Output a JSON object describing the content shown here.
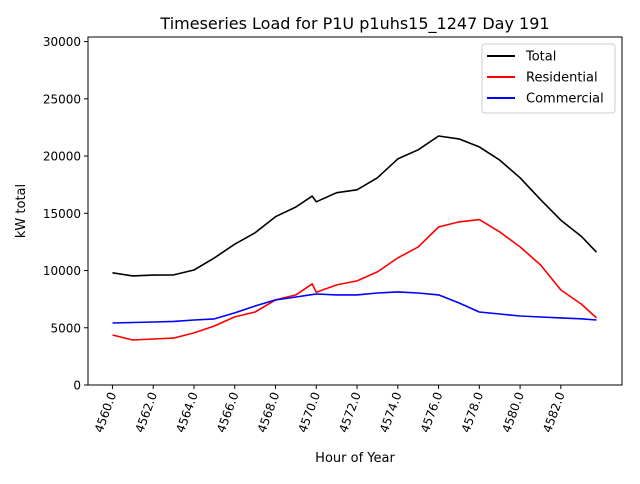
{
  "chart_data": {
    "type": "line",
    "title": "Timeseries Load for P1U p1uhs15_1247  Day 191",
    "xlabel": "Hour of Year",
    "ylabel": "kW total",
    "xlim": [
      4558.8,
      4585.0
    ],
    "ylim": [
      0,
      30400
    ],
    "xticks": [
      4560,
      4562,
      4564,
      4566,
      4568,
      4570,
      4572,
      4574,
      4576,
      4578,
      4580,
      4582
    ],
    "xtick_labels": [
      "4560.0",
      "4562.0",
      "4564.0",
      "4566.0",
      "4568.0",
      "4570.0",
      "4572.0",
      "4574.0",
      "4576.0",
      "4578.0",
      "4580.0",
      "4582.0"
    ],
    "yticks": [
      0,
      5000,
      10000,
      15000,
      20000,
      25000,
      30000
    ],
    "ytick_labels": [
      "0",
      "5000",
      "10000",
      "15000",
      "20000",
      "25000",
      "30000"
    ],
    "grid": false,
    "legend_position": "top-right",
    "x": [
      4560,
      4561,
      4562,
      4563,
      4564,
      4565,
      4566,
      4567,
      4568,
      4569,
      4569.8,
      4570,
      4571,
      4572,
      4573,
      4574,
      4575,
      4576,
      4577,
      4578,
      4579,
      4580,
      4581,
      4582,
      4583,
      4583.75
    ],
    "series": [
      {
        "name": "Total",
        "color": "#000000",
        "values": [
          9800,
          9530,
          9600,
          9620,
          10050,
          11100,
          12300,
          13300,
          14700,
          15550,
          16500,
          16000,
          16800,
          17050,
          18100,
          19750,
          20550,
          21750,
          21500,
          20800,
          19650,
          18100,
          16200,
          14400,
          13000,
          11600
        ]
      },
      {
        "name": "Residential",
        "color": "#ff0000",
        "values": [
          4370,
          3930,
          4020,
          4100,
          4550,
          5150,
          5950,
          6380,
          7430,
          7870,
          8830,
          8100,
          8740,
          9090,
          9880,
          11100,
          12060,
          13800,
          14250,
          14450,
          13370,
          12060,
          10490,
          8300,
          7080,
          5860
        ]
      },
      {
        "name": "Commercial",
        "color": "#0000ff",
        "values": [
          5420,
          5460,
          5500,
          5560,
          5680,
          5770,
          6300,
          6900,
          7430,
          7690,
          7900,
          7950,
          7870,
          7870,
          8040,
          8130,
          8040,
          7870,
          7170,
          6380,
          6200,
          6030,
          5940,
          5860,
          5780,
          5680
        ]
      }
    ]
  }
}
